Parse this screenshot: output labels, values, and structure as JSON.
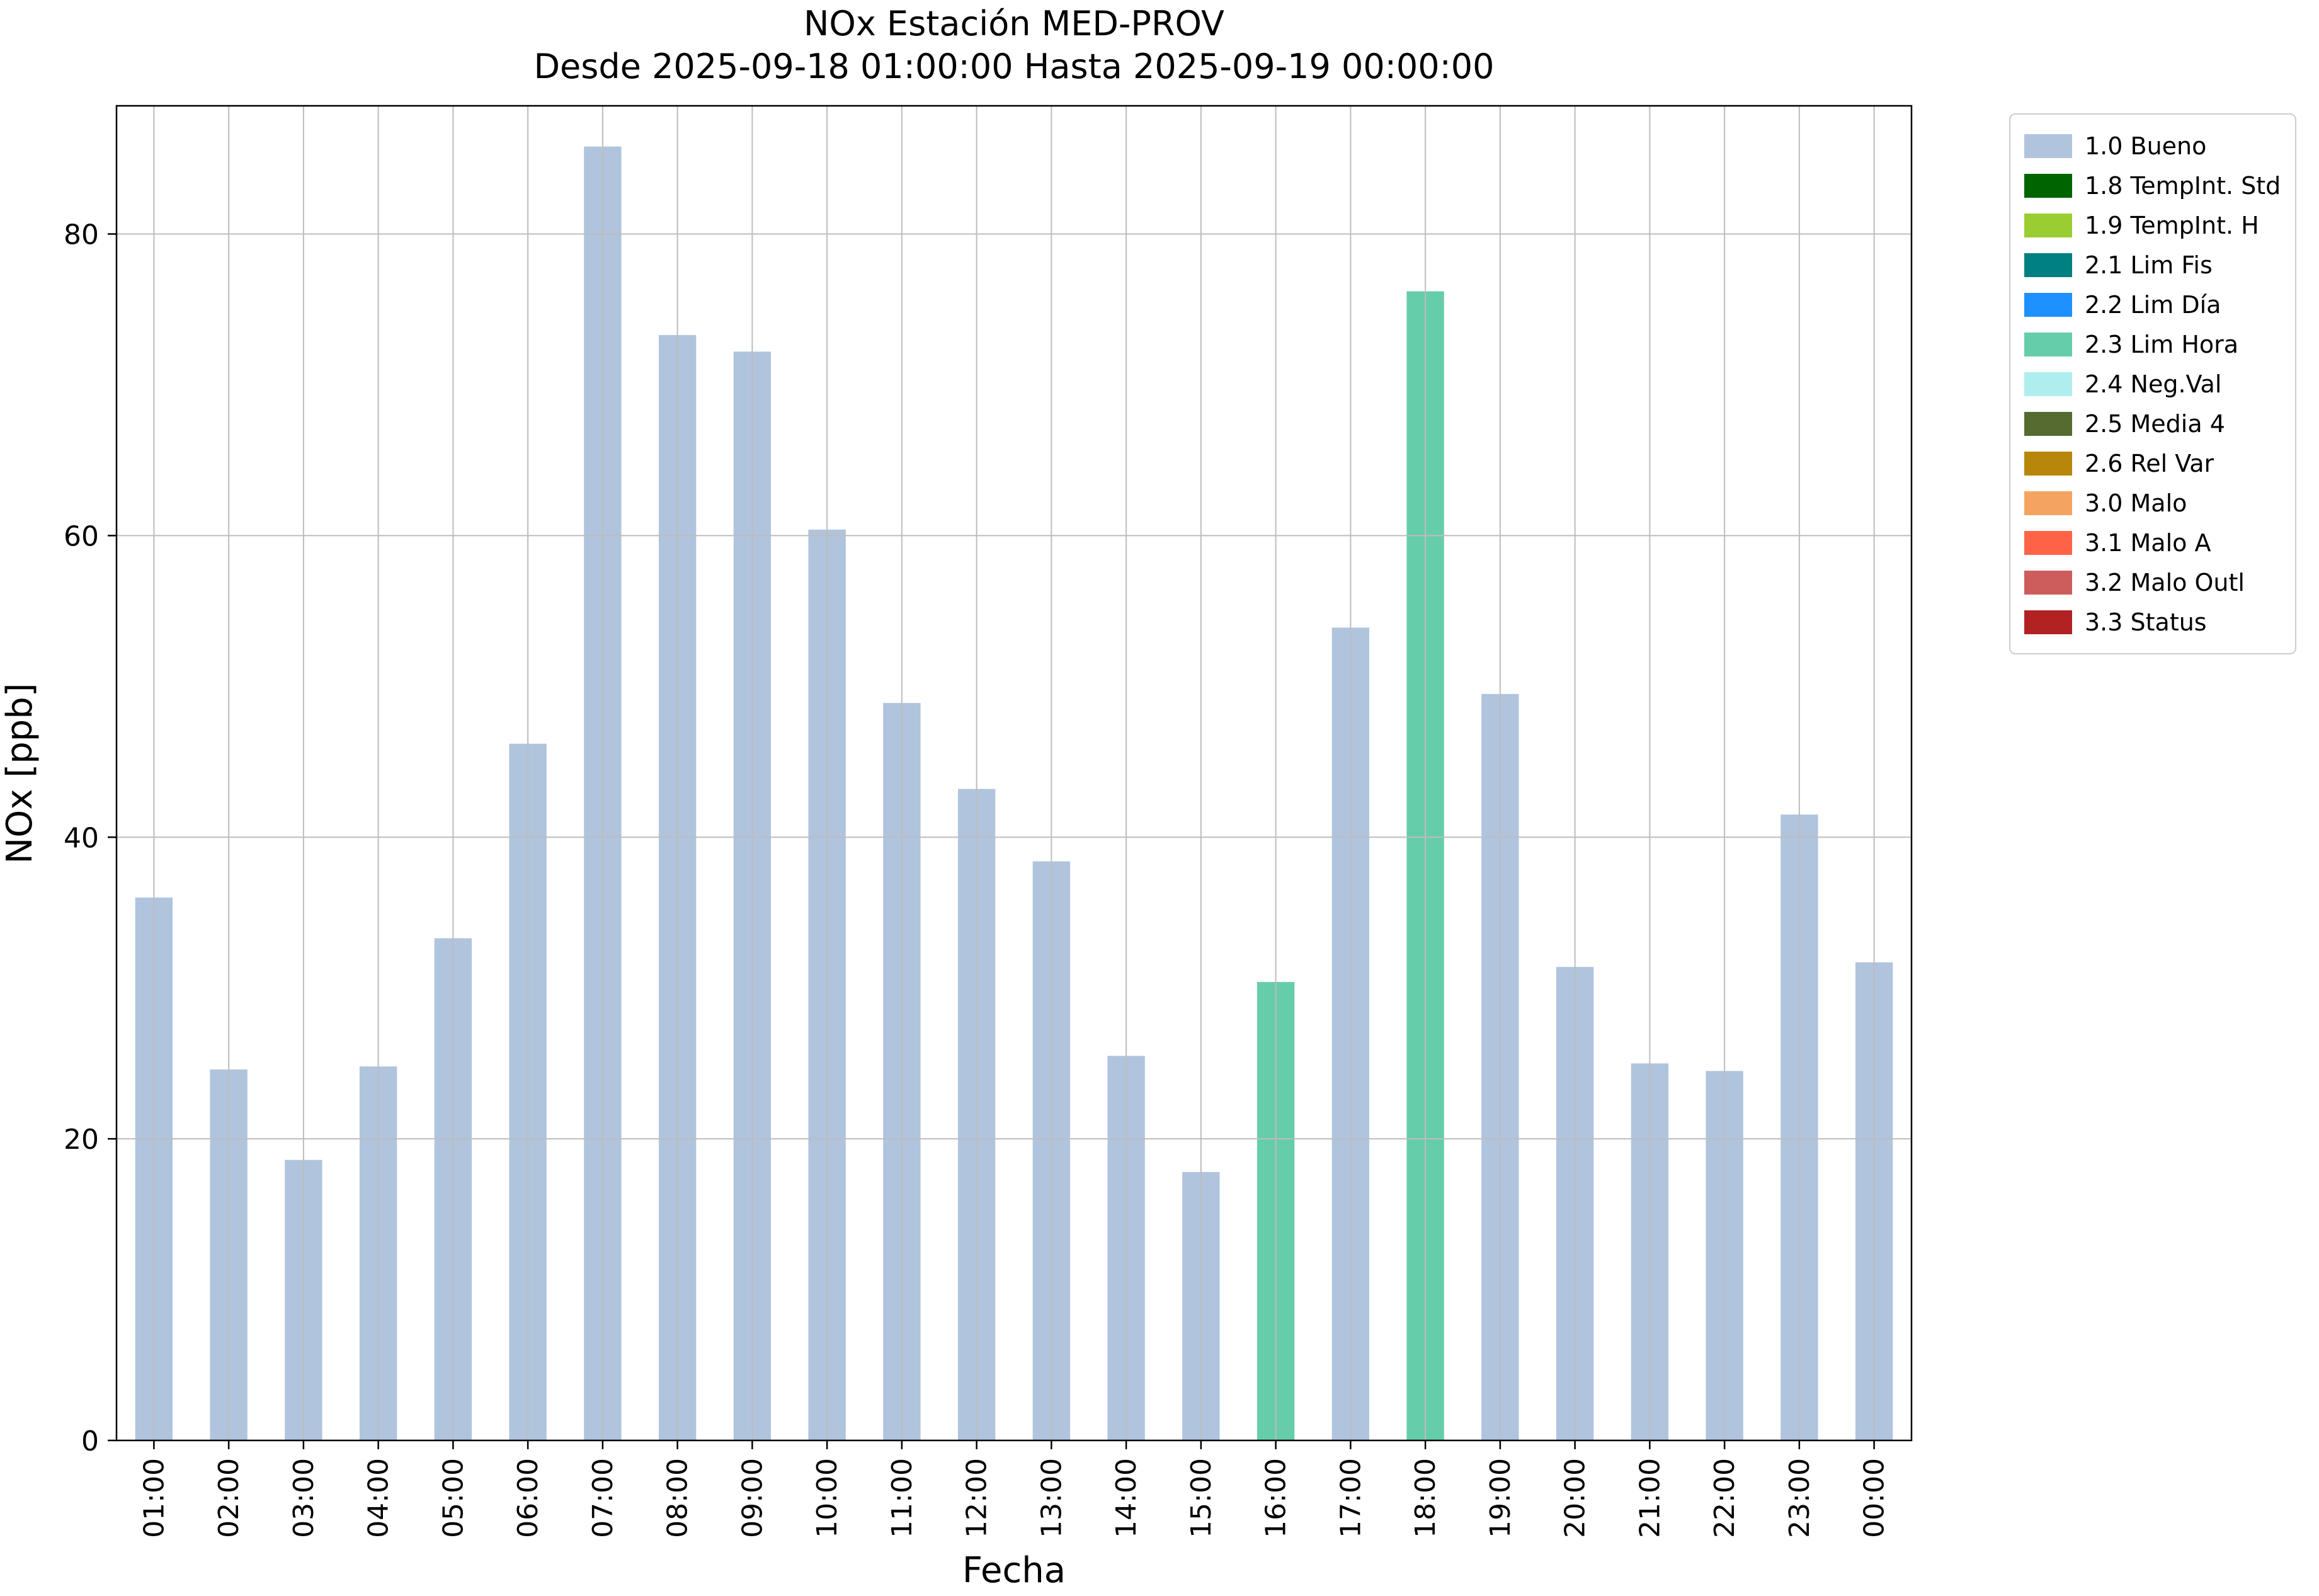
{
  "page": {
    "background": "#ffffff"
  },
  "chart_data": {
    "type": "bar",
    "title": "NOx Estación MED-PROV",
    "subtitle": "Desde 2025-09-18 01:00:00 Hasta 2025-09-19 00:00:00",
    "xlabel": "Fecha",
    "ylabel": "NOx [ppb]",
    "ylim": [
      0,
      88.5
    ],
    "yticks": [
      0,
      20,
      40,
      60,
      80
    ],
    "grid": true,
    "legend_position": "outside-upper-right",
    "categories": [
      "01:00",
      "02:00",
      "03:00",
      "04:00",
      "05:00",
      "06:00",
      "07:00",
      "08:00",
      "09:00",
      "10:00",
      "11:00",
      "12:00",
      "13:00",
      "14:00",
      "15:00",
      "16:00",
      "17:00",
      "18:00",
      "19:00",
      "20:00",
      "21:00",
      "22:00",
      "23:00",
      "00:00"
    ],
    "values": [
      36.0,
      24.6,
      18.6,
      24.8,
      33.3,
      46.2,
      85.8,
      73.3,
      72.2,
      60.4,
      48.9,
      43.2,
      38.4,
      25.5,
      17.8,
      30.4,
      53.9,
      76.2,
      49.5,
      31.4,
      25.0,
      24.5,
      41.5,
      31.7
    ],
    "bar_status": [
      "1.0 Bueno",
      "1.0 Bueno",
      "1.0 Bueno",
      "1.0 Bueno",
      "1.0 Bueno",
      "1.0 Bueno",
      "1.0 Bueno",
      "1.0 Bueno",
      "1.0 Bueno",
      "1.0 Bueno",
      "1.0 Bueno",
      "1.0 Bueno",
      "1.0 Bueno",
      "1.0 Bueno",
      "1.0 Bueno",
      "2.3 Lim Hora",
      "1.0 Bueno",
      "2.3 Lim Hora",
      "1.0 Bueno",
      "1.0 Bueno",
      "1.0 Bueno",
      "1.0 Bueno",
      "1.0 Bueno",
      "1.0 Bueno"
    ],
    "status_colors": {
      "1.0 Bueno": "#b0c4de",
      "2.3 Lim Hora": "#66cdaa"
    },
    "legend_entries": [
      {
        "label": "1.0 Bueno",
        "color": "#b0c4de"
      },
      {
        "label": "1.8 TempInt. Std",
        "color": "#006400"
      },
      {
        "label": "1.9 TempInt. H",
        "color": "#9acd32"
      },
      {
        "label": "2.1 Lim Fis",
        "color": "#008080"
      },
      {
        "label": "2.2 Lim Día",
        "color": "#1e90ff"
      },
      {
        "label": "2.3 Lim Hora",
        "color": "#66cdaa"
      },
      {
        "label": "2.4 Neg.Val",
        "color": "#afeeee"
      },
      {
        "label": "2.5 Media 4",
        "color": "#556b2f"
      },
      {
        "label": "2.6 Rel Var",
        "color": "#b8860b"
      },
      {
        "label": "3.0 Malo",
        "color": "#f4a460"
      },
      {
        "label": "3.1 Malo A",
        "color": "#ff6347"
      },
      {
        "label": "3.2 Malo Outl",
        "color": "#cd5c5c"
      },
      {
        "label": "3.3 Status",
        "color": "#b22222"
      }
    ]
  }
}
